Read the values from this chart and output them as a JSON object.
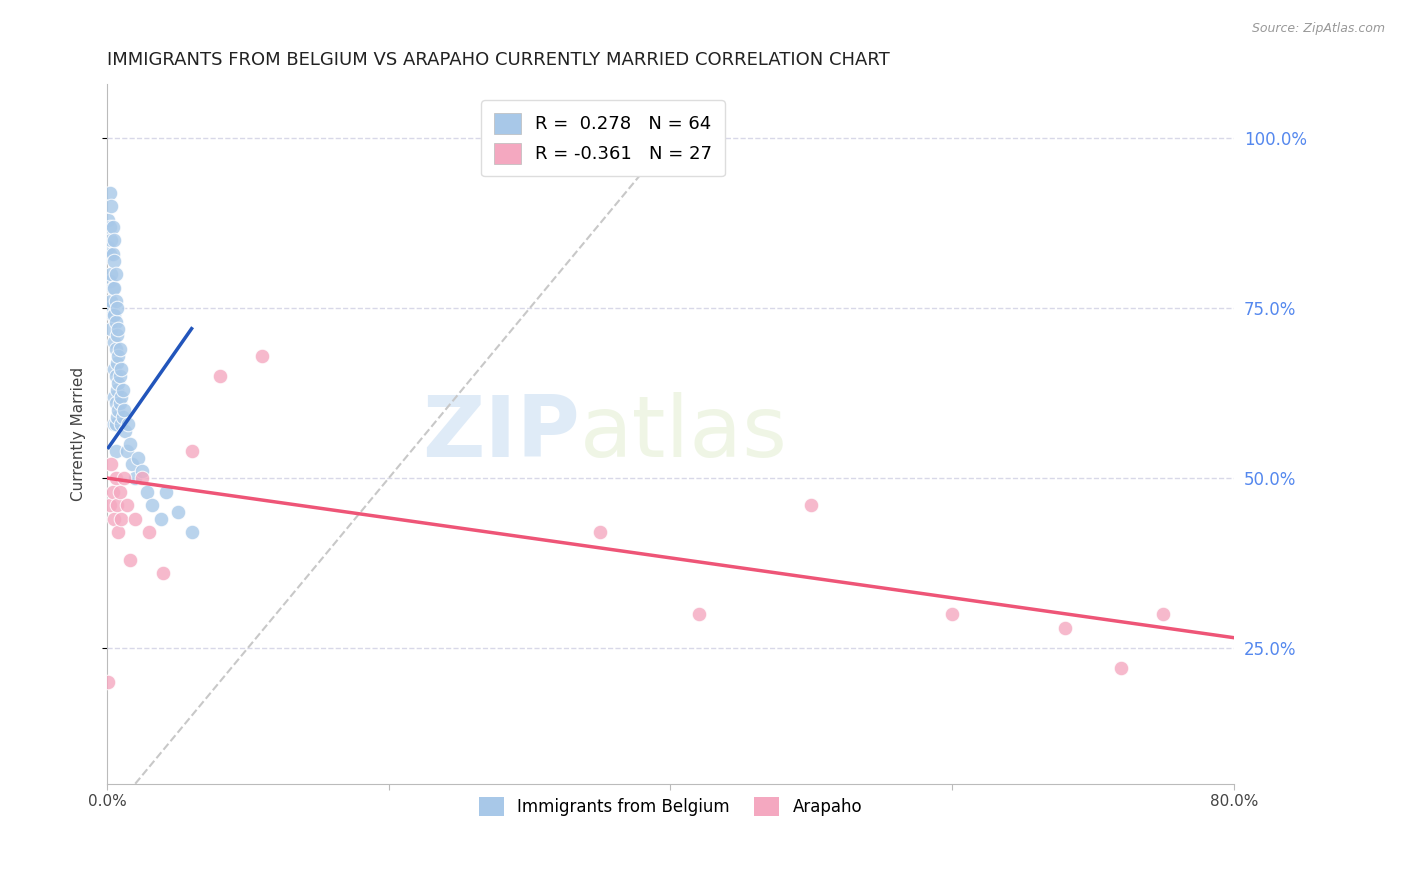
{
  "title": "IMMIGRANTS FROM BELGIUM VS ARAPAHO CURRENTLY MARRIED CORRELATION CHART",
  "source": "Source: ZipAtlas.com",
  "ylabel": "Currently Married",
  "ytick_labels": [
    "100.0%",
    "75.0%",
    "50.0%",
    "25.0%"
  ],
  "ytick_values": [
    1.0,
    0.75,
    0.5,
    0.25
  ],
  "xlim": [
    0.0,
    0.8
  ],
  "ylim": [
    0.05,
    1.08
  ],
  "watermark_zip": "ZIP",
  "watermark_atlas": "atlas",
  "legend_blue_r": "R =  0.278",
  "legend_blue_n": "N = 64",
  "legend_pink_r": "R = -0.361",
  "legend_pink_n": "N = 27",
  "blue_scatter_x": [
    0.001,
    0.001,
    0.002,
    0.002,
    0.002,
    0.002,
    0.002,
    0.003,
    0.003,
    0.003,
    0.003,
    0.003,
    0.004,
    0.004,
    0.004,
    0.004,
    0.005,
    0.005,
    0.005,
    0.005,
    0.005,
    0.005,
    0.005,
    0.005,
    0.006,
    0.006,
    0.006,
    0.006,
    0.006,
    0.006,
    0.006,
    0.006,
    0.007,
    0.007,
    0.007,
    0.007,
    0.007,
    0.008,
    0.008,
    0.008,
    0.008,
    0.009,
    0.009,
    0.009,
    0.01,
    0.01,
    0.01,
    0.011,
    0.011,
    0.012,
    0.013,
    0.014,
    0.015,
    0.016,
    0.018,
    0.02,
    0.022,
    0.025,
    0.028,
    0.032,
    0.038,
    0.042,
    0.05,
    0.06
  ],
  "blue_scatter_y": [
    0.88,
    0.84,
    0.92,
    0.87,
    0.83,
    0.79,
    0.75,
    0.9,
    0.85,
    0.8,
    0.76,
    0.72,
    0.87,
    0.83,
    0.78,
    0.74,
    0.85,
    0.82,
    0.78,
    0.74,
    0.7,
    0.66,
    0.62,
    0.58,
    0.8,
    0.76,
    0.73,
    0.69,
    0.65,
    0.61,
    0.58,
    0.54,
    0.75,
    0.71,
    0.67,
    0.63,
    0.59,
    0.72,
    0.68,
    0.64,
    0.6,
    0.69,
    0.65,
    0.61,
    0.66,
    0.62,
    0.58,
    0.63,
    0.59,
    0.6,
    0.57,
    0.54,
    0.58,
    0.55,
    0.52,
    0.5,
    0.53,
    0.51,
    0.48,
    0.46,
    0.44,
    0.48,
    0.45,
    0.42
  ],
  "pink_scatter_x": [
    0.001,
    0.002,
    0.003,
    0.004,
    0.005,
    0.006,
    0.007,
    0.008,
    0.009,
    0.01,
    0.012,
    0.014,
    0.016,
    0.02,
    0.025,
    0.03,
    0.04,
    0.06,
    0.08,
    0.11,
    0.35,
    0.42,
    0.5,
    0.6,
    0.68,
    0.72,
    0.75
  ],
  "pink_scatter_y": [
    0.2,
    0.46,
    0.52,
    0.48,
    0.44,
    0.5,
    0.46,
    0.42,
    0.48,
    0.44,
    0.5,
    0.46,
    0.38,
    0.44,
    0.5,
    0.42,
    0.36,
    0.54,
    0.65,
    0.68,
    0.42,
    0.3,
    0.46,
    0.3,
    0.28,
    0.22,
    0.3
  ],
  "blue_line_x": [
    0.001,
    0.06
  ],
  "blue_line_y": [
    0.545,
    0.72
  ],
  "gray_line_x": [
    0.0,
    0.42
  ],
  "gray_line_y": [
    0.0,
    1.05
  ],
  "pink_line_x": [
    0.0,
    0.8
  ],
  "pink_line_y": [
    0.5,
    0.265
  ],
  "blue_color": "#A8C8E8",
  "pink_color": "#F4A8C0",
  "blue_line_color": "#2255BB",
  "pink_line_color": "#EE5577",
  "gray_line_color": "#C8C8C8",
  "right_axis_color": "#5588EE",
  "background_color": "#FFFFFF",
  "grid_color": "#D8D8E8",
  "title_fontsize": 13,
  "axis_label_fontsize": 11,
  "tick_fontsize": 11
}
